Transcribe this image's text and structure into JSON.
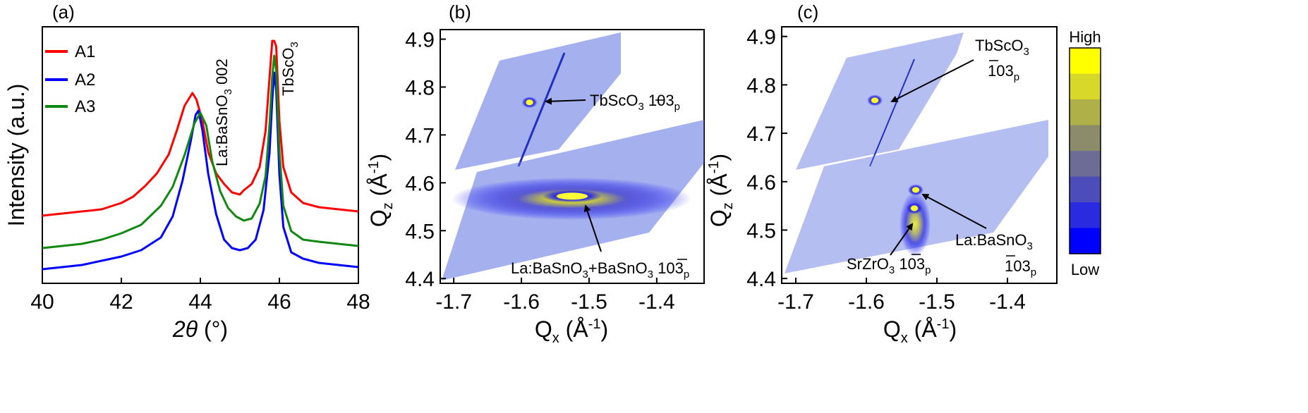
{
  "chart_data": [
    {
      "type": "line",
      "panel": "(a)",
      "xlabel": "2θ (°)",
      "xlabel_theta": "2θ",
      "xlabel_unit": "(°)",
      "ylabel": "Intensity (a.u.)",
      "xlim": [
        40,
        48
      ],
      "xticks": [
        "40",
        "42",
        "44",
        "46",
        "48"
      ],
      "legend_position": "top-left",
      "series": [
        {
          "name": "A1",
          "color": "#ff0000",
          "x": [
            40.0,
            40.5,
            41.0,
            41.5,
            42.0,
            42.3,
            42.6,
            42.9,
            43.2,
            43.4,
            43.6,
            43.8,
            43.9,
            44.05,
            44.2,
            44.4,
            44.6,
            44.8,
            45.0,
            45.1,
            45.3,
            45.5,
            45.65,
            45.75,
            45.82,
            45.87,
            45.92,
            46.0,
            46.1,
            46.3,
            46.6,
            47.0,
            47.5,
            48.0
          ],
          "y": [
            0.1,
            0.11,
            0.12,
            0.13,
            0.16,
            0.19,
            0.24,
            0.3,
            0.39,
            0.5,
            0.62,
            0.68,
            0.65,
            0.55,
            0.4,
            0.3,
            0.25,
            0.21,
            0.2,
            0.22,
            0.25,
            0.33,
            0.5,
            0.75,
            0.93,
            0.98,
            0.9,
            0.55,
            0.33,
            0.21,
            0.16,
            0.14,
            0.13,
            0.12
          ]
        },
        {
          "name": "A2",
          "color": "#0000ff",
          "x": [
            40.0,
            40.5,
            41.0,
            41.5,
            42.0,
            42.5,
            43.0,
            43.3,
            43.55,
            43.75,
            43.88,
            43.95,
            44.05,
            44.2,
            44.4,
            44.6,
            44.8,
            45.0,
            45.2,
            45.4,
            45.6,
            45.75,
            45.82,
            45.87,
            45.92,
            46.0,
            46.1,
            46.3,
            46.6,
            47.0,
            47.5,
            48.0
          ],
          "y": [
            0.0,
            0.01,
            0.02,
            0.04,
            0.06,
            0.09,
            0.15,
            0.25,
            0.42,
            0.6,
            0.73,
            0.75,
            0.66,
            0.45,
            0.26,
            0.14,
            0.1,
            0.09,
            0.1,
            0.14,
            0.28,
            0.55,
            0.8,
            0.93,
            0.85,
            0.45,
            0.2,
            0.08,
            0.05,
            0.03,
            0.02,
            0.01
          ]
        },
        {
          "name": "A3",
          "color": "#118811",
          "x": [
            40.0,
            40.5,
            41.0,
            41.5,
            42.0,
            42.5,
            43.0,
            43.3,
            43.6,
            43.85,
            44.0,
            44.15,
            44.3,
            44.5,
            44.7,
            44.9,
            45.1,
            45.3,
            45.5,
            45.65,
            45.75,
            45.82,
            45.87,
            45.92,
            46.0,
            46.1,
            46.3,
            46.6,
            47.0,
            47.5,
            48.0
          ],
          "y": [
            0.04,
            0.05,
            0.06,
            0.08,
            0.11,
            0.15,
            0.24,
            0.33,
            0.48,
            0.63,
            0.68,
            0.62,
            0.45,
            0.31,
            0.23,
            0.19,
            0.17,
            0.18,
            0.25,
            0.38,
            0.62,
            0.85,
            0.95,
            0.88,
            0.5,
            0.24,
            0.12,
            0.08,
            0.07,
            0.06,
            0.05
          ]
        }
      ],
      "annotations": [
        {
          "text": "La:BaSnO",
          "sub": "3",
          "suffix": " 002"
        },
        {
          "text": "TbScO",
          "sub": "3",
          "suffix": ""
        }
      ]
    },
    {
      "type": "heatmap",
      "panel": "(b)",
      "xlabel": "Qx (Å-1)",
      "ylabel": "Qz (Å-1)",
      "xlim": [
        -1.72,
        -1.33
      ],
      "ylim": [
        4.39,
        4.92
      ],
      "xticks": [
        "-1.7",
        "-1.6",
        "-1.5",
        "-1.4"
      ],
      "yticks": [
        "4.4",
        "4.5",
        "4.6",
        "4.7",
        "4.8",
        "4.9"
      ],
      "peaks": [
        {
          "label": "TbScO3 -103p",
          "qx": -1.588,
          "qz": 4.768
        },
        {
          "label": "La:BaSnO3+BaSnO3 -103p",
          "qx": -1.525,
          "qz": 4.572
        }
      ],
      "labels": {
        "tbsco_main": "TbScO",
        "tbsco_sub": "3",
        "tbsco_refl": " 103",
        "tbsco_p": "p",
        "lbso_main": "La:BaSnO",
        "lbso_sub": "3",
        "lbso_mid": "+BaSnO",
        "lbso_sub2": "3",
        "lbso_refl": " 103",
        "lbso_p": "p"
      }
    },
    {
      "type": "heatmap",
      "panel": "(c)",
      "xlabel": "Qx (Å-1)",
      "ylabel": "Qz (Å-1)",
      "xlim": [
        -1.72,
        -1.33
      ],
      "ylim": [
        4.39,
        4.92
      ],
      "xticks": [
        "-1.7",
        "-1.6",
        "-1.5",
        "-1.4"
      ],
      "yticks": [
        "4.4",
        "4.5",
        "4.6",
        "4.7",
        "4.8",
        "4.9"
      ],
      "peaks": [
        {
          "label": "TbScO3 -103p",
          "qx": -1.588,
          "qz": 4.768
        },
        {
          "label": "La:BaSnO3 -103p",
          "qx": -1.53,
          "qz": 4.583
        },
        {
          "label": "SrZrO3 -103p",
          "qx": -1.532,
          "qz": 4.545
        }
      ],
      "labels": {
        "tbsco_main": "TbScO",
        "tbsco_sub": "3",
        "tbsco_refl": "103",
        "tbsco_p": "p",
        "lbso_main": "La:BaSnO",
        "lbso_sub": "3",
        "lbso_refl": "103",
        "lbso_p": "p",
        "szo_main": "SrZrO",
        "szo_sub": "3",
        "szo_refl": " 103",
        "szo_p": "p"
      },
      "colorbar": {
        "high": "High",
        "low": "Low",
        "colors": [
          "#ffff00",
          "#d8d828",
          "#b0b048",
          "#8c8c6a",
          "#6c6c96",
          "#4c4cba",
          "#2a2ae0",
          "#0000ff"
        ]
      }
    }
  ]
}
